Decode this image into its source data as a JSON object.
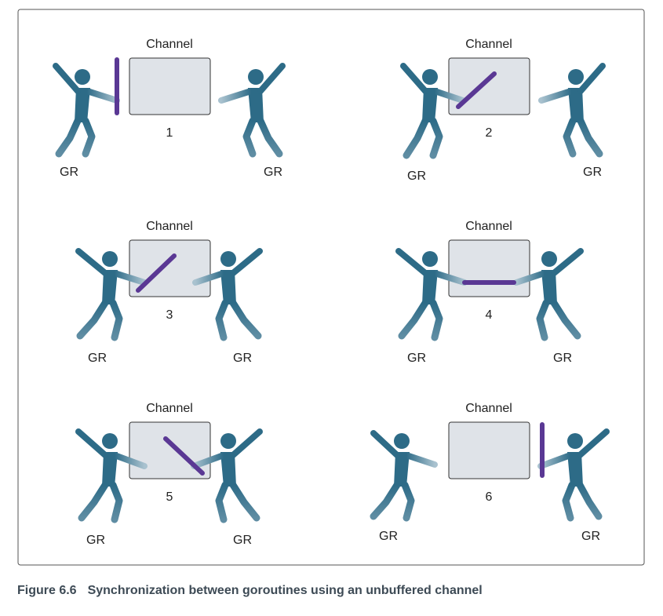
{
  "figure": {
    "caption_number": "Figure 6.6",
    "caption_text": "Synchronization between goroutines using an unbuffered channel"
  },
  "colors": {
    "figure": "#2d6b87",
    "stick": "#5a3894",
    "channel_fill": "#dfe3e8",
    "channel_stroke": "#333333"
  },
  "panels": [
    {
      "step": "1",
      "channel_label": "Channel",
      "left_label": "GR",
      "right_label": "GR"
    },
    {
      "step": "2",
      "channel_label": "Channel",
      "left_label": "GR",
      "right_label": "GR"
    },
    {
      "step": "3",
      "channel_label": "Channel",
      "left_label": "GR",
      "right_label": "GR"
    },
    {
      "step": "4",
      "channel_label": "Channel",
      "left_label": "GR",
      "right_label": "GR"
    },
    {
      "step": "5",
      "channel_label": "Channel",
      "left_label": "GR",
      "right_label": "GR"
    },
    {
      "step": "6",
      "channel_label": "Channel",
      "left_label": "GR",
      "right_label": "GR"
    }
  ]
}
